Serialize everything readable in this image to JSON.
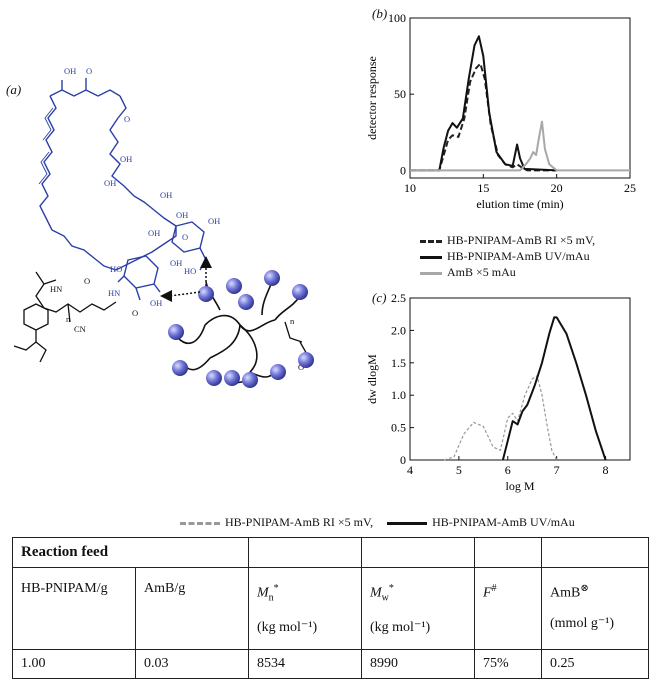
{
  "figure": {
    "panel_a_tag": "(a)",
    "panel_b_tag": "(b)",
    "panel_c_tag": "(c)"
  },
  "structure": {
    "labels": {
      "oh1": "OH",
      "o1": "O",
      "o2": "O",
      "oh2": "OH",
      "oh3": "OH",
      "oh4": "OH",
      "oh5": "OH",
      "oh6": "OH",
      "o3": "O",
      "oh7": "OH",
      "oh8": "OH",
      "hn1": "HN",
      "ho1": "HO",
      "oh9": "OH",
      "cn": "CN",
      "o4": "O",
      "o5": "O",
      "hn2": "HN",
      "o6": "O",
      "n1": "n",
      "n2": "n",
      "ho2": "HO"
    }
  },
  "chart_data": [
    {
      "type": "line",
      "panel": "(b)",
      "xlabel": "elution time (min)",
      "ylabel": "detector response",
      "xlim": [
        10,
        25
      ],
      "ylim": [
        -5,
        100
      ],
      "xticks": [
        "10",
        "15",
        "20",
        "25"
      ],
      "yticks": [
        "0",
        "50",
        "100"
      ],
      "grid": false,
      "series": [
        {
          "name": "HB-PNIPAM-AmB RI ×5 mV,",
          "color": "#222222",
          "style": "dashed",
          "x": [
            10,
            12,
            12.3,
            12.6,
            12.9,
            13.3,
            13.7,
            14.1,
            14.5,
            14.8,
            15.1,
            15.5,
            16.0,
            16.5,
            17.0,
            17.3,
            17.6,
            18.0,
            20
          ],
          "y": [
            0,
            0,
            10,
            20,
            23,
            22,
            34,
            58,
            67,
            70,
            60,
            30,
            10,
            4,
            2,
            4,
            2,
            0,
            0
          ]
        },
        {
          "name": "HB-PNIPAM-AmB UV/mAu",
          "color": "#111111",
          "style": "solid",
          "x": [
            10,
            12,
            12.3,
            12.6,
            12.9,
            13.2,
            13.6,
            14.0,
            14.4,
            14.7,
            15.0,
            15.4,
            15.9,
            16.5,
            17.0,
            17.3,
            17.5,
            17.8,
            20
          ],
          "y": [
            0,
            0,
            15,
            26,
            31,
            28,
            34,
            60,
            82,
            88,
            75,
            38,
            12,
            4,
            3,
            17,
            8,
            1,
            0
          ]
        },
        {
          "name": "AmB ×5 mAu",
          "color": "#a8a8a8",
          "style": "solid",
          "x": [
            10,
            17.5,
            17.9,
            18.2,
            18.4,
            18.6,
            18.8,
            19.0,
            19.2,
            19.5,
            20,
            25
          ],
          "y": [
            0,
            0,
            4,
            8,
            12,
            10,
            22,
            32,
            14,
            4,
            0,
            0
          ]
        }
      ]
    },
    {
      "type": "line",
      "panel": "(c)",
      "xlabel": "log M",
      "ylabel": "dw dlogM",
      "xlim": [
        4,
        8.5
      ],
      "ylim": [
        0,
        2.5
      ],
      "xticks": [
        "4",
        "5",
        "6",
        "7",
        "8"
      ],
      "yticks": [
        "0",
        "0.5",
        "1.0",
        "1.5",
        "2.0",
        "2.5"
      ],
      "grid": false,
      "series": [
        {
          "name": "HB-PNIPAM-AmB RI ×5 mV,",
          "color": "#999999",
          "style": "dashed",
          "x": [
            4.7,
            4.9,
            5.1,
            5.3,
            5.5,
            5.7,
            5.85,
            6.0,
            6.1,
            6.2,
            6.35,
            6.5,
            6.6,
            6.7,
            6.8,
            6.9,
            7.0
          ],
          "y": [
            0,
            0.05,
            0.4,
            0.58,
            0.52,
            0.2,
            0.15,
            0.65,
            0.72,
            0.6,
            1.0,
            1.25,
            1.3,
            1.0,
            0.55,
            0.15,
            0
          ]
        },
        {
          "name": "HB-PNIPAM-AmB UV/mAu",
          "color": "#111111",
          "style": "solid",
          "x": [
            5.9,
            6.0,
            6.1,
            6.2,
            6.3,
            6.4,
            6.55,
            6.7,
            6.85,
            6.95,
            7.0,
            7.2,
            7.4,
            7.6,
            7.8,
            8.0
          ],
          "y": [
            0,
            0.3,
            0.6,
            0.55,
            0.75,
            0.85,
            1.15,
            1.5,
            1.95,
            2.2,
            2.2,
            1.95,
            1.5,
            1.0,
            0.45,
            0
          ]
        }
      ]
    }
  ],
  "legend_b": [
    {
      "label": "HB-PNIPAM-AmB RI ×5 mV,",
      "color": "#222222",
      "style": "dashed"
    },
    {
      "label": "HB-PNIPAM-AmB UV/mAu",
      "color": "#111111",
      "style": "solid"
    },
    {
      "label": "AmB ×5 mAu",
      "color": "#a8a8a8",
      "style": "solid"
    }
  ],
  "legend_c": [
    {
      "label": "HB-PNIPAM-AmB RI ×5 mV,",
      "color": "#999999",
      "style": "dashed"
    },
    {
      "label": "HB-PNIPAM-AmB UV/mAu",
      "color": "#111111",
      "style": "solid"
    }
  ],
  "table": {
    "title": "Reaction feed",
    "headers": {
      "c1": "HB-PNIPAM/g",
      "c2": "AmB/g",
      "c3_sym": "M",
      "c3_sub": "n",
      "c3_sup": "*",
      "c3_unit": "(kg mol⁻¹)",
      "c4_sym": "M",
      "c4_sub": "w",
      "c4_sup": "*",
      "c4_unit": "(kg mol⁻¹)",
      "c5_sym": "F",
      "c5_sup": "#",
      "c6_main": "AmB",
      "c6_sup": "⊗",
      "c6_unit": "(mmol g⁻¹)"
    },
    "row": [
      "1.00",
      "0.03",
      "8534",
      "8990",
      "75%",
      "0.25"
    ]
  },
  "colors": {
    "molecule_blue": "#2b3fa8",
    "sphere_blue": "#5a60c8"
  }
}
